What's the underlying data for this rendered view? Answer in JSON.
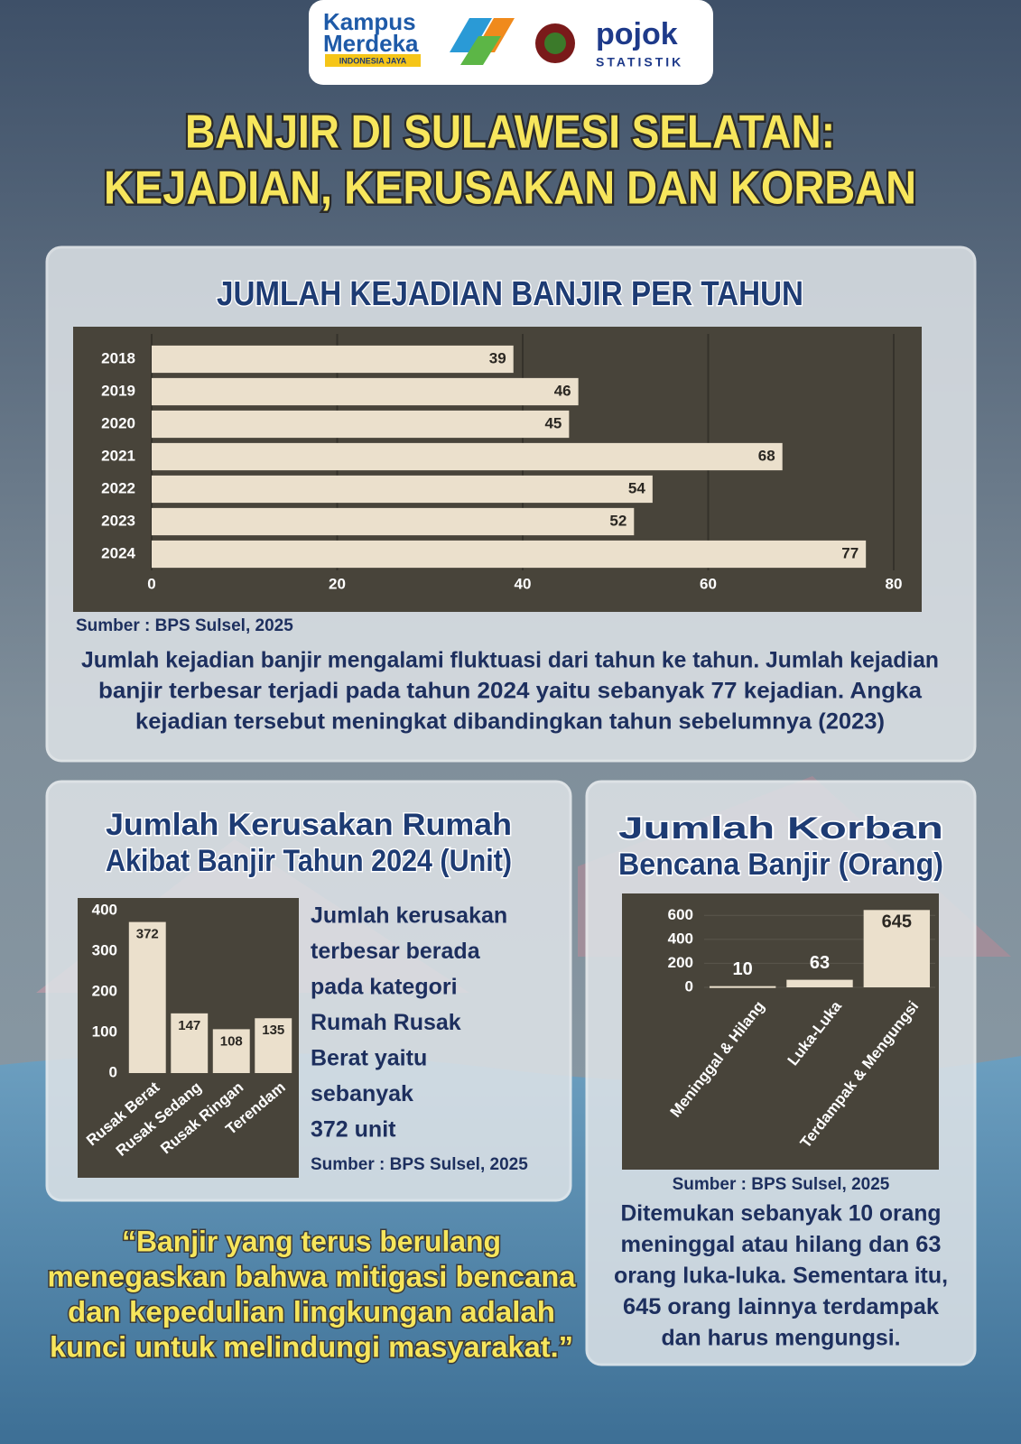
{
  "header": {
    "logos": [
      "Kampus",
      "Merdeka",
      "INDONESIA JAYA",
      "pojok",
      "STATISTIK"
    ],
    "title_lines": [
      "BANJIR DI SULAWESI SELATAN:",
      "KEJADIAN, KERUSAKAN DAN KORBAN"
    ]
  },
  "chart_data": [
    {
      "type": "bar",
      "orientation": "horizontal",
      "title_lines": [
        "JUMLAH KEJADIAN BANJIR PER TAHUN"
      ],
      "categories": [
        "2018",
        "2019",
        "2020",
        "2021",
        "2022",
        "2023",
        "2024"
      ],
      "values": [
        39,
        46,
        45,
        68,
        54,
        52,
        77
      ],
      "color": "#ebe0cc",
      "xlim": [
        0,
        80
      ],
      "xticks": [
        0,
        20,
        40,
        60,
        80
      ],
      "grid": true,
      "source": "Sumber : BPS Sulsel, 2025",
      "note_lines": [
        "Jumlah kejadian banjir mengalami fluktuasi dari tahun ke tahun. Jumlah kejadian",
        "banjir terbesar terjadi pada tahun 2024 yaitu sebanyak 77 kejadian. Angka",
        "kejadian tersebut meningkat dibandingkan tahun sebelumnya (2023)"
      ]
    },
    {
      "type": "bar",
      "orientation": "vertical",
      "title_lines": [
        "Jumlah Kerusakan Rumah",
        "Akibat Banjir Tahun 2024 (Unit)"
      ],
      "categories": [
        "Rusak Berat",
        "Rusak Sedang",
        "Rusak Ringan",
        "Terendam"
      ],
      "values": [
        372,
        147,
        108,
        135
      ],
      "color": "#ebe0cc",
      "ylim": [
        0,
        400
      ],
      "yticks": [
        0,
        100,
        200,
        300,
        400
      ],
      "grid": false,
      "source": "Sumber : BPS Sulsel, 2025",
      "note_lines": [
        "Jumlah kerusakan",
        "terbesar berada",
        "pada kategori",
        "Rumah Rusak",
        "Berat yaitu",
        "sebanyak",
        "372 unit"
      ]
    },
    {
      "type": "bar",
      "orientation": "vertical",
      "title_lines": [
        "Jumlah Korban",
        "Bencana Banjir (Orang)"
      ],
      "categories": [
        "Meninggal & Hilang",
        "Luka-Luka",
        "Terdampak & Mengungsi"
      ],
      "values": [
        10,
        63,
        645
      ],
      "color": "#ebe0cc",
      "ylim": [
        0,
        700
      ],
      "yticks": [
        0,
        200,
        400,
        600
      ],
      "grid": true,
      "source": "Sumber : BPS Sulsel, 2025",
      "note_lines": [
        "Ditemukan sebanyak 10 orang",
        "meninggal atau hilang dan 63",
        "orang luka-luka. Sementara itu,",
        "645 orang lainnya terdampak",
        "dan harus mengungsi."
      ]
    }
  ],
  "quote_lines": [
    "“Banjir yang terus berulang",
    "menegaskan bahwa mitigasi bencana",
    "dan kepedulian lingkungan adalah",
    "kunci untuk melindungi masyarakat.”"
  ]
}
